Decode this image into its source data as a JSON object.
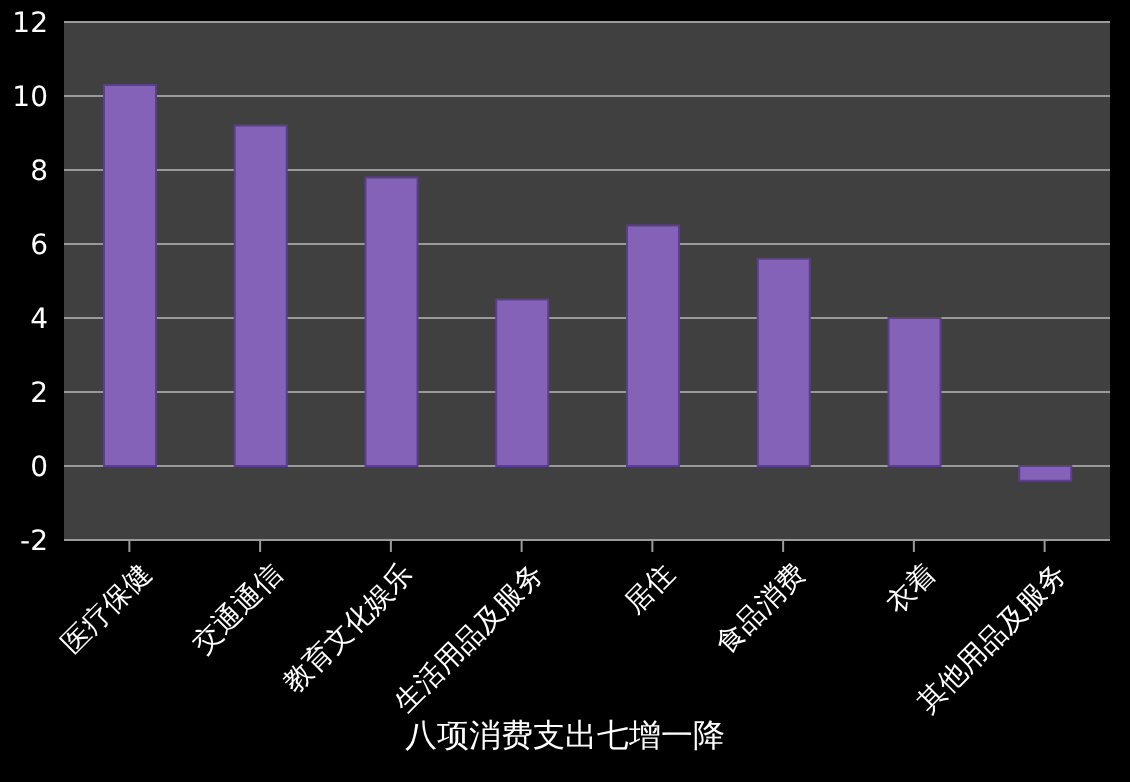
{
  "chart_data": {
    "type": "bar",
    "title": "八项消费支出七增一降",
    "categories": [
      "医疗保健",
      "交通通信",
      "教育文化娱乐",
      "生活用品及服务",
      "居住",
      "食品消费",
      "衣着",
      "其他用品及服务"
    ],
    "values": [
      10.3,
      9.2,
      7.8,
      4.5,
      6.5,
      5.6,
      4.0,
      -0.4
    ],
    "color": "#8462b8",
    "ylim": [
      -2,
      12
    ],
    "yticks": [
      -2,
      0,
      2,
      4,
      6,
      8,
      10,
      12
    ],
    "grid": "y"
  }
}
